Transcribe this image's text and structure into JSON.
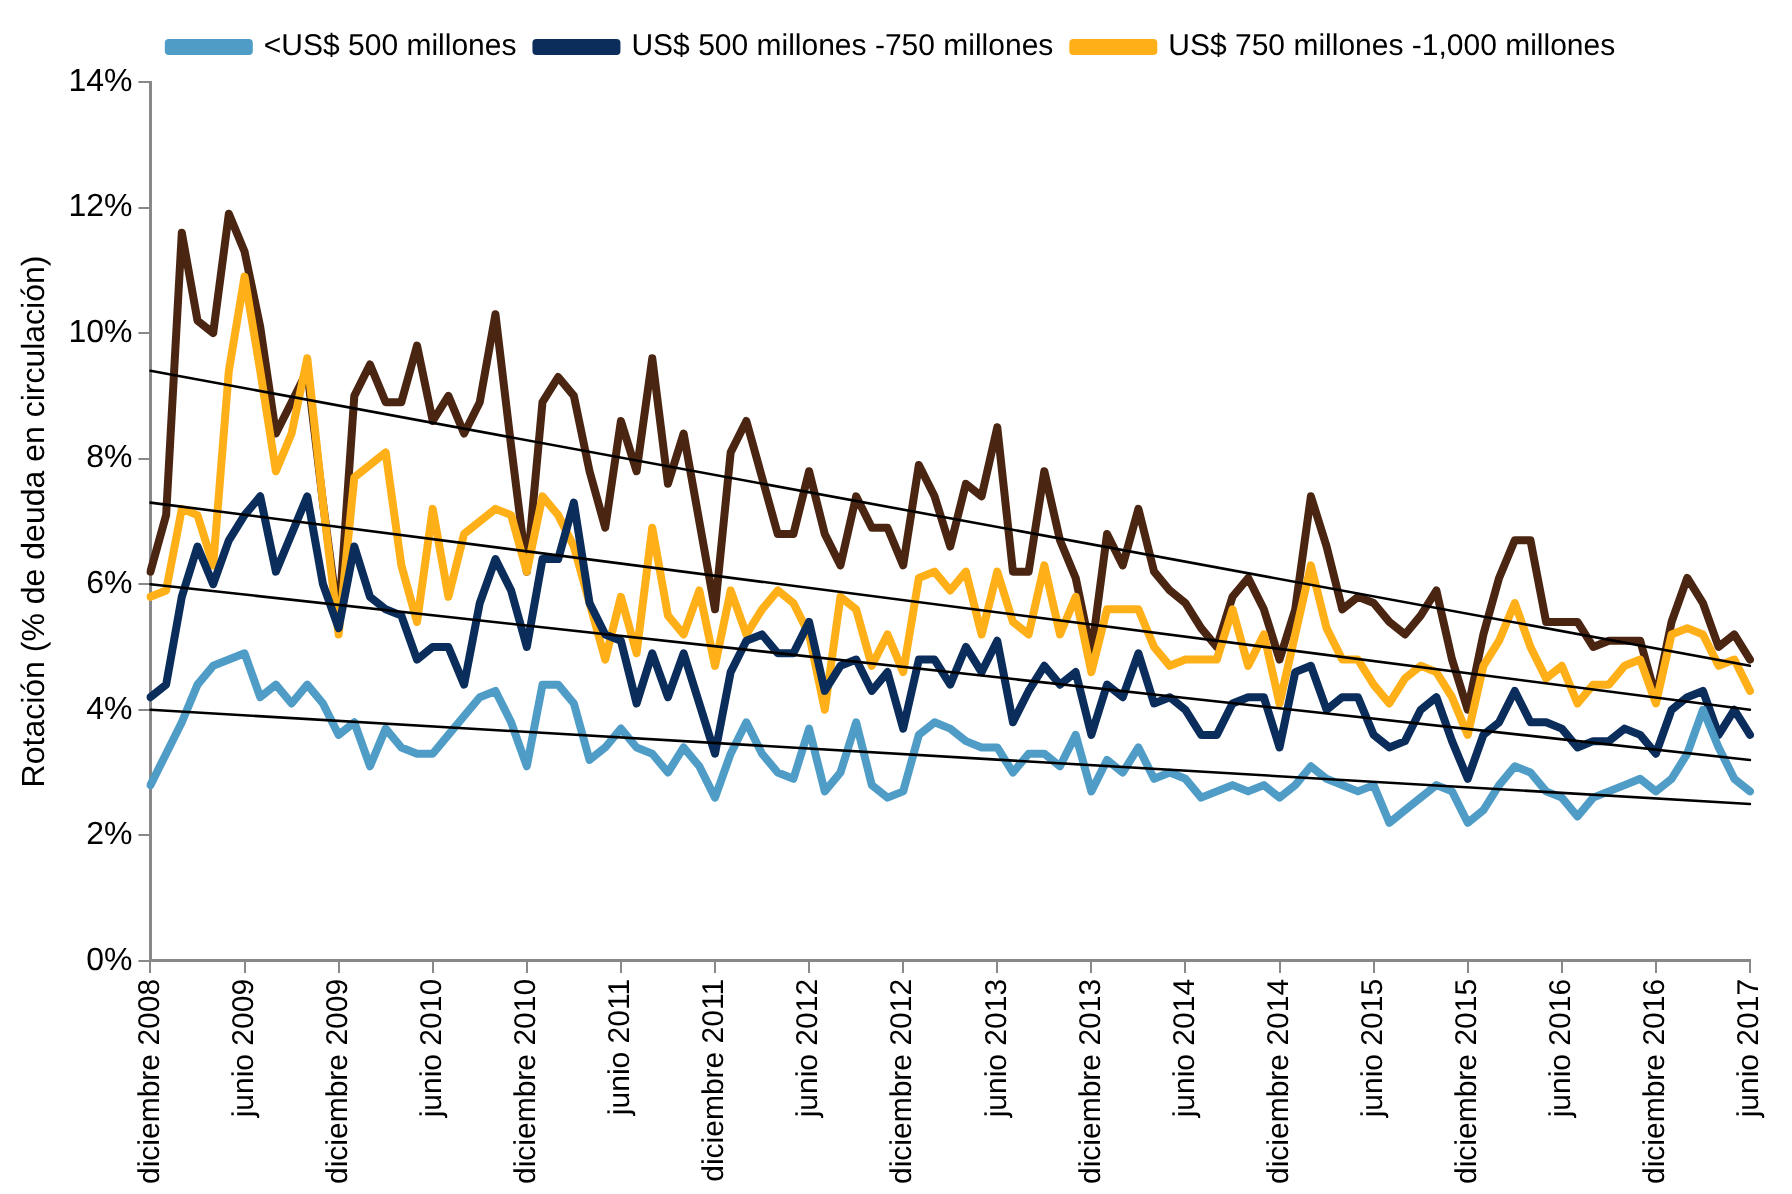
{
  "chart_data": {
    "type": "line",
    "ylabel": "Rotación (% de deuda en circulación)",
    "categories": [
      "diciembre 2008",
      null,
      null,
      null,
      null,
      null,
      "junio 2009",
      null,
      null,
      null,
      null,
      null,
      "diciembre 2009",
      null,
      null,
      null,
      null,
      null,
      "junio 2010",
      null,
      null,
      null,
      null,
      null,
      "diciembre 2010",
      null,
      null,
      null,
      null,
      null,
      "junio 2011",
      null,
      null,
      null,
      null,
      null,
      "diciembre 2011",
      null,
      null,
      null,
      null,
      null,
      "junio 2012",
      null,
      null,
      null,
      null,
      null,
      "diciembre 2012",
      null,
      null,
      null,
      null,
      null,
      "junio 2013",
      null,
      null,
      null,
      null,
      null,
      "diciembre 2013",
      null,
      null,
      null,
      null,
      null,
      "junio 2014",
      null,
      null,
      null,
      null,
      null,
      "diciembre 2014",
      null,
      null,
      null,
      null,
      null,
      "junio 2015",
      null,
      null,
      null,
      null,
      null,
      "diciembre 2015",
      null,
      null,
      null,
      null,
      null,
      "junio 2016",
      null,
      null,
      null,
      null,
      null,
      "diciembre 2016",
      null,
      null,
      null,
      null,
      null,
      "junio 2017"
    ],
    "series": [
      {
        "name": "<US$ 500 millones",
        "color": "#4f9dc6",
        "values": [
          2.8,
          3.3,
          3.8,
          4.4,
          4.7,
          4.8,
          4.9,
          4.2,
          4.4,
          4.1,
          4.4,
          4.1,
          3.6,
          3.8,
          3.1,
          3.7,
          3.4,
          3.3,
          3.3,
          3.6,
          3.9,
          4.2,
          4.3,
          3.8,
          3.1,
          4.4,
          4.4,
          4.1,
          3.2,
          3.4,
          3.7,
          3.4,
          3.3,
          3.0,
          3.4,
          3.1,
          2.6,
          3.3,
          3.8,
          3.3,
          3.0,
          2.9,
          3.7,
          2.7,
          3.0,
          3.8,
          2.8,
          2.6,
          2.7,
          3.6,
          3.8,
          3.7,
          3.5,
          3.4,
          3.4,
          3.0,
          3.3,
          3.3,
          3.1,
          3.6,
          2.7,
          3.2,
          3.0,
          3.4,
          2.9,
          3.0,
          2.9,
          2.6,
          2.7,
          2.8,
          2.7,
          2.8,
          2.6,
          2.8,
          3.1,
          2.9,
          2.8,
          2.7,
          2.8,
          2.2,
          2.4,
          2.6,
          2.8,
          2.7,
          2.2,
          2.4,
          2.8,
          3.1,
          3.0,
          2.7,
          2.6,
          2.3,
          2.6,
          2.7,
          2.8,
          2.9,
          2.7,
          2.9,
          3.3,
          4.0,
          3.4,
          2.9,
          2.7
        ]
      },
      {
        "name": "US$ 500 millones -750 millones",
        "color": "#0b2d5b",
        "values": [
          4.2,
          4.4,
          5.8,
          6.6,
          6.0,
          6.7,
          7.1,
          7.4,
          6.2,
          6.8,
          7.4,
          6.0,
          5.3,
          6.6,
          5.8,
          5.6,
          5.5,
          4.8,
          5.0,
          5.0,
          4.4,
          5.7,
          6.4,
          5.9,
          5.0,
          6.4,
          6.4,
          7.3,
          5.7,
          5.2,
          5.1,
          4.1,
          4.9,
          4.2,
          4.9,
          4.1,
          3.3,
          4.6,
          5.1,
          5.2,
          4.9,
          4.9,
          5.4,
          4.3,
          4.7,
          4.8,
          4.3,
          4.6,
          3.7,
          4.8,
          4.8,
          4.4,
          5.0,
          4.6,
          5.1,
          3.8,
          4.3,
          4.7,
          4.4,
          4.6,
          3.6,
          4.4,
          4.2,
          4.9,
          4.1,
          4.2,
          4.0,
          3.6,
          3.6,
          4.1,
          4.2,
          4.2,
          3.4,
          4.6,
          4.7,
          4.0,
          4.2,
          4.2,
          3.6,
          3.4,
          3.5,
          4.0,
          4.2,
          3.5,
          2.9,
          3.6,
          3.8,
          4.3,
          3.8,
          3.8,
          3.7,
          3.4,
          3.5,
          3.5,
          3.7,
          3.6,
          3.3,
          4.0,
          4.2,
          4.3,
          3.6,
          4.0,
          3.6
        ]
      },
      {
        "name": "US$ 750 millones -1,000 millones",
        "color": "#ffb018",
        "values": [
          5.8,
          5.9,
          7.2,
          7.1,
          6.3,
          9.4,
          10.9,
          9.4,
          7.8,
          8.4,
          9.6,
          7.3,
          5.2,
          7.7,
          7.9,
          8.1,
          6.3,
          5.4,
          7.2,
          5.8,
          6.8,
          7.0,
          7.2,
          7.1,
          6.2,
          7.4,
          7.1,
          6.6,
          5.7,
          4.8,
          5.8,
          4.9,
          6.9,
          5.5,
          5.2,
          5.9,
          4.7,
          5.9,
          5.2,
          5.6,
          5.9,
          5.7,
          5.2,
          4.0,
          5.8,
          5.6,
          4.7,
          5.2,
          4.6,
          6.1,
          6.2,
          5.9,
          6.2,
          5.2,
          6.2,
          5.4,
          5.2,
          6.3,
          5.2,
          5.8,
          4.6,
          5.6,
          5.6,
          5.6,
          5.0,
          4.7,
          4.8,
          4.8,
          4.8,
          5.6,
          4.7,
          5.2,
          4.1,
          5.2,
          6.3,
          5.3,
          4.8,
          4.8,
          4.4,
          4.1,
          4.5,
          4.7,
          4.6,
          4.2,
          3.6,
          4.7,
          5.1,
          5.7,
          5.0,
          4.5,
          4.7,
          4.1,
          4.4,
          4.4,
          4.7,
          4.8,
          4.1,
          5.2,
          5.3,
          5.2,
          4.7,
          4.8,
          4.3
        ]
      },
      {
        "color": "#4a2512",
        "values": [
          6.2,
          7.1,
          11.6,
          10.2,
          10.0,
          11.9,
          11.3,
          10.1,
          8.4,
          8.9,
          9.4,
          7.3,
          5.4,
          9.0,
          9.5,
          8.9,
          8.9,
          9.8,
          8.6,
          9.0,
          8.4,
          8.9,
          10.3,
          8.2,
          6.2,
          8.9,
          9.3,
          9.0,
          7.8,
          6.9,
          8.6,
          7.8,
          9.6,
          7.6,
          8.4,
          7.0,
          5.6,
          8.1,
          8.6,
          7.7,
          6.8,
          6.8,
          7.8,
          6.8,
          6.3,
          7.4,
          6.9,
          6.9,
          6.3,
          7.9,
          7.4,
          6.6,
          7.6,
          7.4,
          8.5,
          6.2,
          6.2,
          7.8,
          6.7,
          6.1,
          4.9,
          6.8,
          6.3,
          7.2,
          6.2,
          5.9,
          5.7,
          5.3,
          5.0,
          5.8,
          6.1,
          5.6,
          4.8,
          5.6,
          7.4,
          6.6,
          5.6,
          5.8,
          5.7,
          5.4,
          5.2,
          5.5,
          5.9,
          4.8,
          4.0,
          5.2,
          6.1,
          6.7,
          6.7,
          5.4,
          5.4,
          5.4,
          5.0,
          5.1,
          5.1,
          5.1,
          4.2,
          5.4,
          6.1,
          5.7,
          5.0,
          5.2,
          4.8
        ]
      },
      {
        "type": "line",
        "color": "#000000",
        "x": [
          "diciembre 2008",
          "junio 2017"
        ],
        "values": [
          9.4,
          4.7
        ]
      },
      {
        "type": "line",
        "color": "#000000",
        "x": [
          "diciembre 2008",
          "junio 2017"
        ],
        "values": [
          7.3,
          4.0
        ]
      },
      {
        "type": "line",
        "color": "#000000",
        "x": [
          "diciembre 2008",
          "junio 2017"
        ],
        "values": [
          6.0,
          3.2
        ]
      },
      {
        "type": "line",
        "color": "#000000",
        "x": [
          "diciembre 2008",
          "junio 2017"
        ],
        "values": [
          4.0,
          2.5
        ]
      }
    ],
    "ylim": [
      0,
      14
    ],
    "yticks": [
      {
        "value": 0,
        "label": "0%"
      },
      {
        "value": 2,
        "label": "2%"
      },
      {
        "value": 4,
        "label": "4%"
      },
      {
        "value": 6,
        "label": "6%"
      },
      {
        "value": 8,
        "label": "8%"
      },
      {
        "value": 10,
        "label": "10%"
      },
      {
        "value": 12,
        "label": "12%"
      },
      {
        "value": 14,
        "label": "14%"
      }
    ],
    "grid": false,
    "legend": "top",
    "marker": "none",
    "line_style": "solid"
  }
}
